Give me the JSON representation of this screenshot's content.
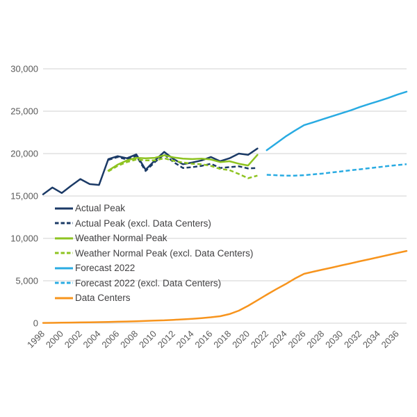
{
  "page": {
    "background_color": "#ffffff",
    "text_color": "#595959",
    "grid_color": "#d9d9d9"
  },
  "chart_data": {
    "type": "line",
    "title": "",
    "xlabel": "",
    "ylabel": "",
    "x_range": [
      1998,
      2037
    ],
    "ylim": [
      0,
      30000
    ],
    "grid": "horizontal-only",
    "legend_position": "inside-left-middle",
    "y_ticks": [
      {
        "label": "0",
        "value": 0
      },
      {
        "label": "5,000",
        "value": 5000
      },
      {
        "label": "10,000",
        "value": 10000
      },
      {
        "label": "15,000",
        "value": 15000
      },
      {
        "label": "20,000",
        "value": 20000
      },
      {
        "label": "25,000",
        "value": 25000
      },
      {
        "label": "30,000",
        "value": 30000
      }
    ],
    "x_ticks": [
      "1998",
      "2000",
      "2002",
      "2004",
      "2006",
      "2008",
      "2010",
      "2012",
      "2014",
      "2016",
      "2018",
      "2020",
      "2022",
      "2024",
      "2026",
      "2028",
      "2030",
      "2032",
      "2034",
      "2036"
    ],
    "series": [
      {
        "name": "Actual Peak",
        "color": "#1b3a66",
        "dashed": false,
        "years": [
          1998,
          1999,
          2000,
          2001,
          2002,
          2003,
          2004,
          2005,
          2006,
          2007,
          2008,
          2009,
          2010,
          2011,
          2012,
          2013,
          2014,
          2015,
          2016,
          2017,
          2018,
          2019,
          2020,
          2021
        ],
        "values": [
          15200,
          16000,
          15350,
          16200,
          17000,
          16400,
          16300,
          19350,
          19700,
          19450,
          19900,
          18100,
          19200,
          20200,
          19350,
          18750,
          18950,
          19200,
          19600,
          19100,
          19450,
          20000,
          19850,
          20600
        ]
      },
      {
        "name": "Actual Peak (excl. Data Centers)",
        "color": "#1b3a66",
        "dashed": true,
        "years": [
          2005,
          2006,
          2007,
          2008,
          2009,
          2010,
          2011,
          2012,
          2013,
          2014,
          2015,
          2016,
          2017,
          2018,
          2019,
          2020,
          2021
        ],
        "values": [
          19250,
          19600,
          19300,
          19750,
          17950,
          19000,
          19900,
          19000,
          18300,
          18400,
          18550,
          18800,
          18300,
          18400,
          18500,
          18250,
          18300
        ]
      },
      {
        "name": "Weather Normal Peak",
        "color": "#8ec321",
        "dashed": false,
        "years": [
          2005,
          2006,
          2007,
          2008,
          2009,
          2010,
          2011,
          2012,
          2013,
          2014,
          2015,
          2016,
          2017,
          2018,
          2019,
          2020,
          2021
        ],
        "values": [
          18000,
          18700,
          19200,
          19500,
          19450,
          19500,
          19800,
          19550,
          19400,
          19350,
          19400,
          19300,
          19000,
          19100,
          18800,
          18600,
          19850
        ]
      },
      {
        "name": "Weather Normal Peak (excl. Data Centers)",
        "color": "#8ec321",
        "dashed": true,
        "years": [
          2005,
          2006,
          2007,
          2008,
          2009,
          2010,
          2011,
          2012,
          2013,
          2014,
          2015,
          2016,
          2017,
          2018,
          2019,
          2020,
          2021
        ],
        "values": [
          17900,
          18550,
          19000,
          19300,
          19200,
          19200,
          19450,
          19150,
          18950,
          18800,
          18750,
          18550,
          18200,
          18050,
          17600,
          17100,
          17400
        ]
      },
      {
        "name": "Forecast 2022",
        "color": "#29abe2",
        "dashed": false,
        "years": [
          2022,
          2023,
          2024,
          2025,
          2026,
          2027,
          2028,
          2029,
          2030,
          2031,
          2032,
          2033,
          2034,
          2035,
          2036,
          2037
        ],
        "values": [
          20400,
          21200,
          22000,
          22700,
          23350,
          23700,
          24050,
          24400,
          24750,
          25100,
          25500,
          25850,
          26200,
          26550,
          26950,
          27300
        ]
      },
      {
        "name": "Forecast 2022 (excl. Data Centers)",
        "color": "#29abe2",
        "dashed": true,
        "years": [
          2022,
          2023,
          2024,
          2025,
          2026,
          2027,
          2028,
          2029,
          2030,
          2031,
          2032,
          2033,
          2034,
          2035,
          2036,
          2037
        ],
        "values": [
          17500,
          17450,
          17400,
          17400,
          17450,
          17550,
          17650,
          17780,
          17900,
          18030,
          18150,
          18280,
          18400,
          18530,
          18650,
          18750
        ]
      },
      {
        "name": "Data Centers",
        "color": "#f7941d",
        "dashed": false,
        "years": [
          1998,
          1999,
          2000,
          2001,
          2002,
          2003,
          2004,
          2005,
          2006,
          2007,
          2008,
          2009,
          2010,
          2011,
          2012,
          2013,
          2014,
          2015,
          2016,
          2017,
          2018,
          2019,
          2020,
          2021,
          2022,
          2023,
          2024,
          2025,
          2026,
          2027,
          2028,
          2029,
          2030,
          2031,
          2032,
          2033,
          2034,
          2035,
          2036,
          2037
        ],
        "values": [
          30,
          45,
          60,
          75,
          90,
          105,
          120,
          145,
          170,
          200,
          230,
          265,
          300,
          340,
          390,
          450,
          520,
          600,
          700,
          820,
          1070,
          1475,
          2050,
          2700,
          3360,
          4000,
          4600,
          5250,
          5820,
          6070,
          6320,
          6560,
          6810,
          7050,
          7300,
          7540,
          7790,
          8030,
          8280,
          8520
        ]
      }
    ]
  }
}
